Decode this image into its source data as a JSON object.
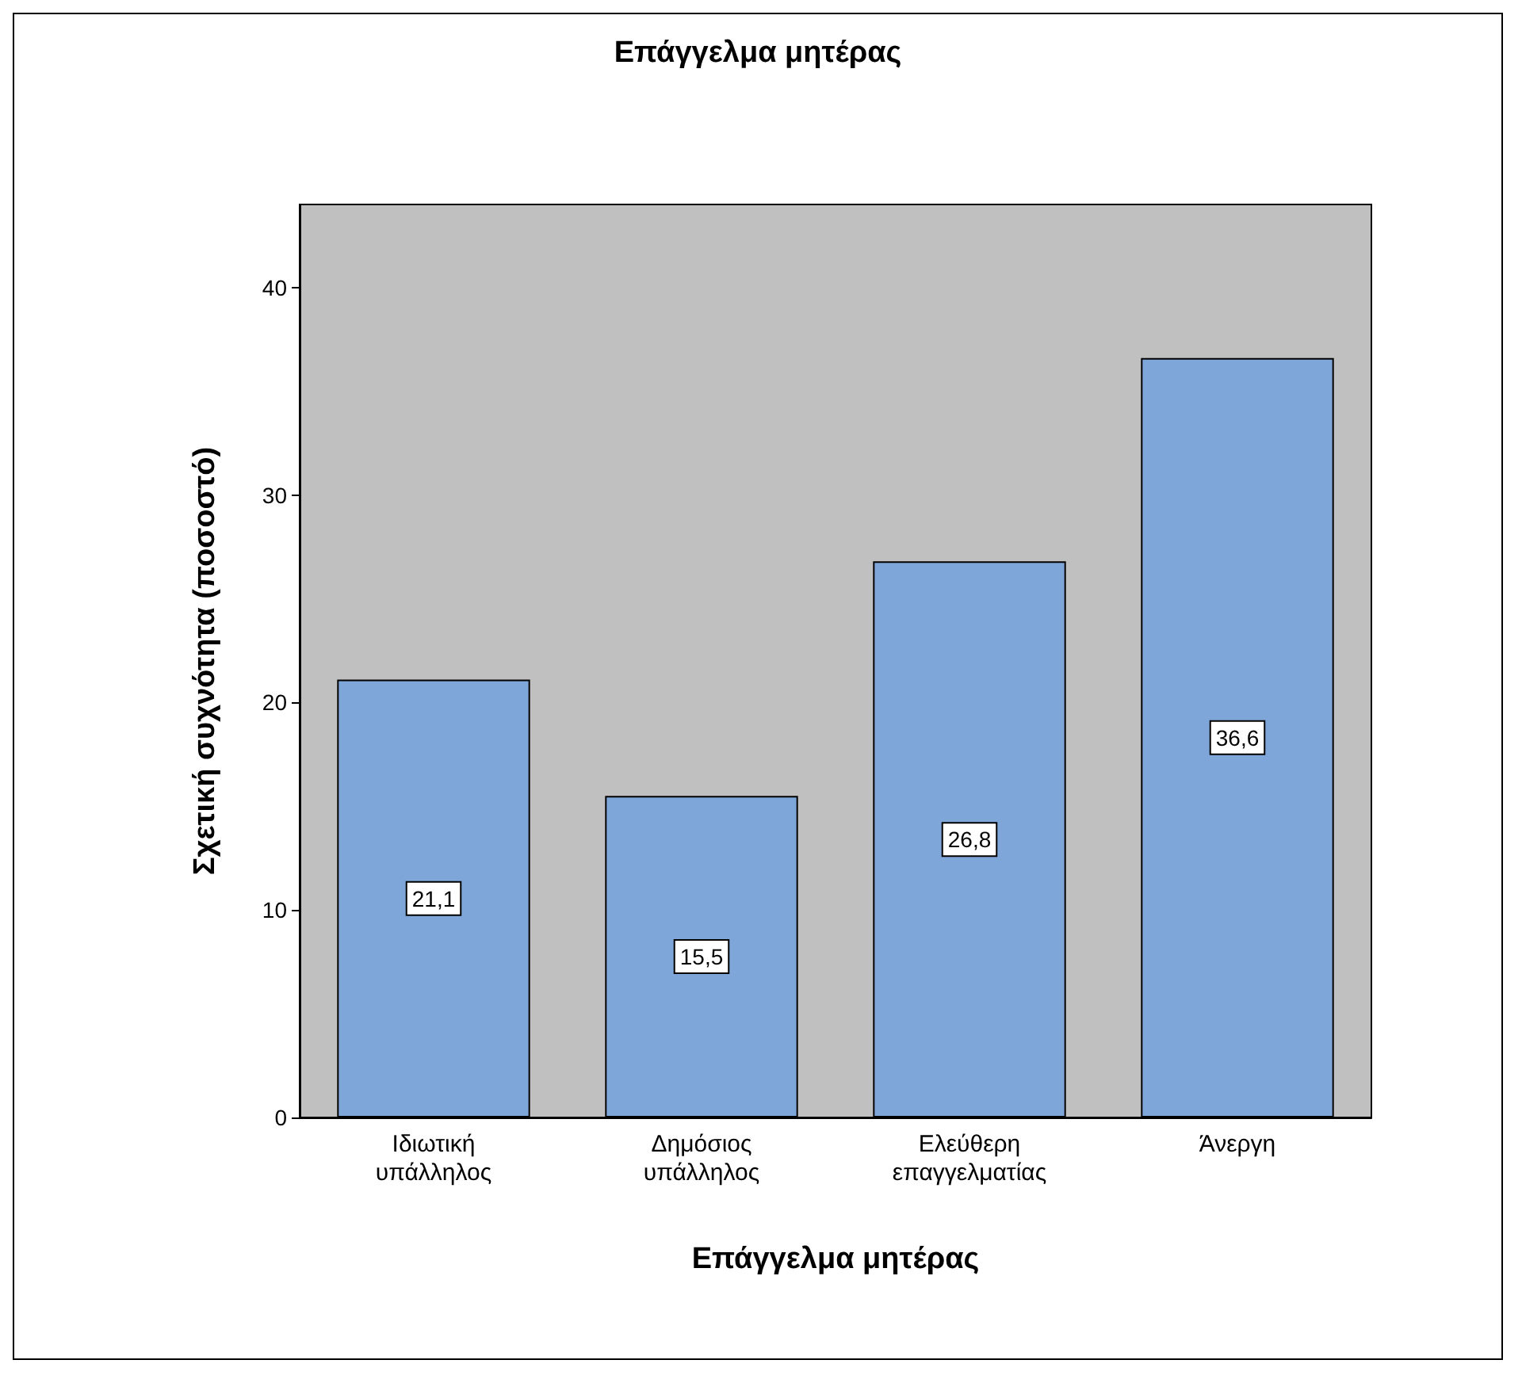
{
  "chart_data": {
    "type": "bar",
    "title": "Επάγγελμα μητέρας",
    "xlabel": "Επάγγελμα μητέρας",
    "ylabel": "Σχετική συχνότητα (ποσοστό)",
    "categories": [
      "Ιδιωτική υπάλληλος",
      "Δημόσιος υπάλληλος",
      "Ελεύθερη επαγγελματίας",
      "Άνεργη"
    ],
    "values": [
      21.1,
      15.5,
      26.8,
      36.6
    ],
    "value_labels": [
      "21,1",
      "15,5",
      "26,8",
      "36,6"
    ],
    "color": "#7ea6d8",
    "ylim": [
      0,
      44
    ],
    "yticks": [
      0,
      10,
      20,
      30,
      40
    ],
    "grid": false
  }
}
